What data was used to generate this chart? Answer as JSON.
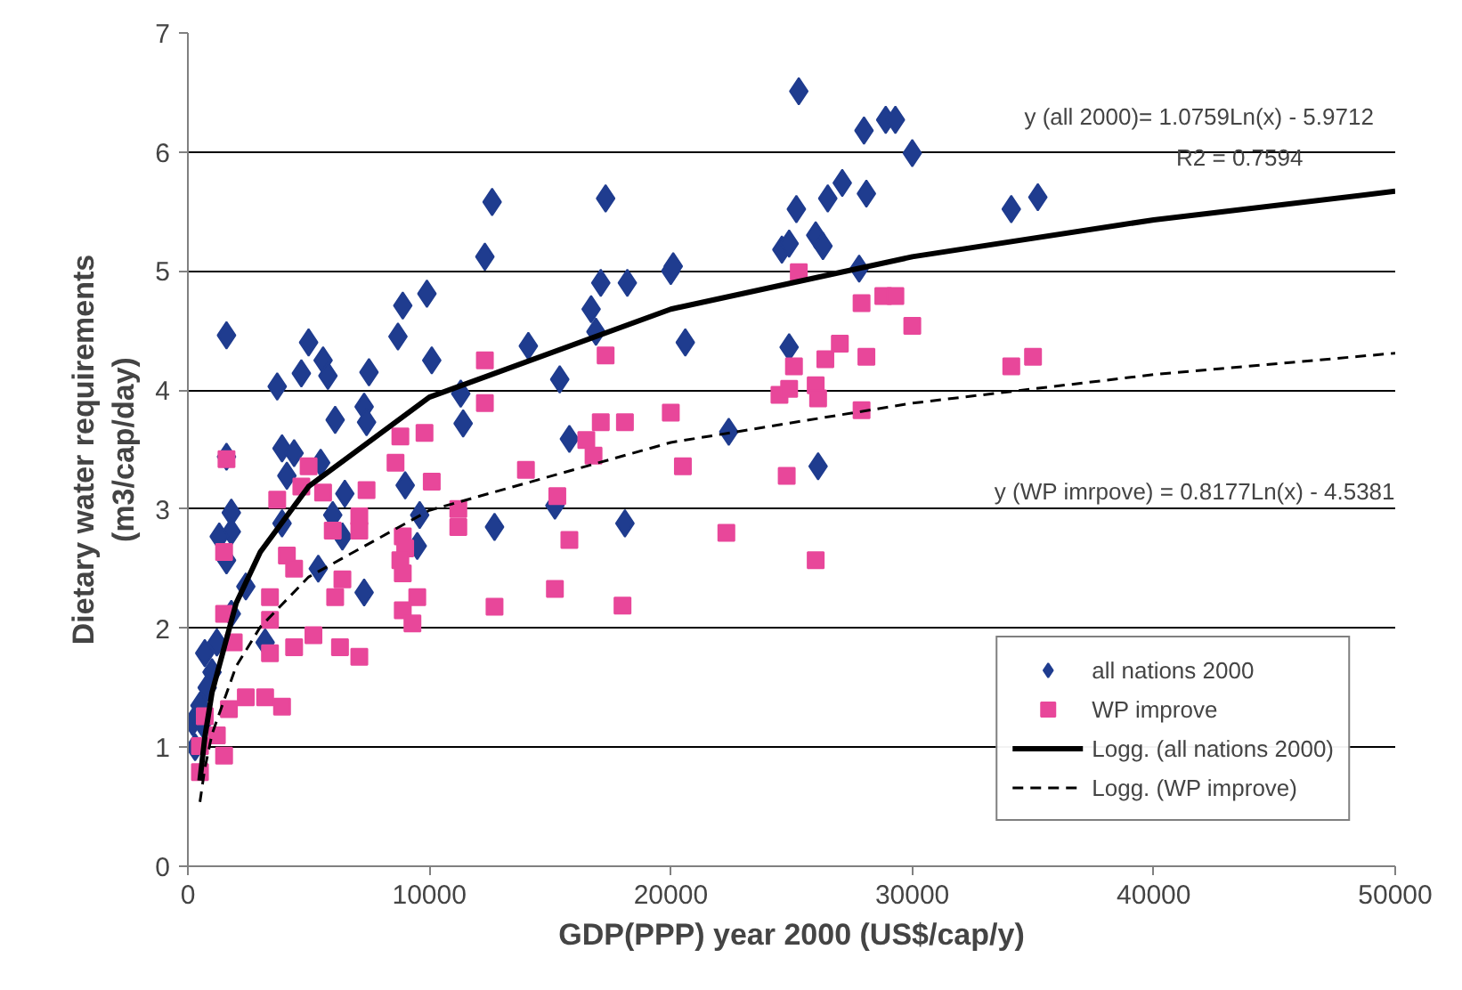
{
  "chart_data": {
    "type": "scatter",
    "xlabel": "GDP(PPP) year 2000 (US$/cap/y)",
    "ylabel": "Dietary water requirements\n(m3/cap/day)",
    "xlim": [
      0,
      50000
    ],
    "ylim": [
      0,
      7
    ],
    "xticks": [
      0,
      10000,
      20000,
      30000,
      40000,
      50000
    ],
    "yticks": [
      0,
      1,
      2,
      3,
      4,
      5,
      6,
      7
    ],
    "grid": "y",
    "legend": "bottom right",
    "annotations": [
      "y (all 2000)= 1.0759Ln(x) - 5.9712",
      "R2 = 0.7594",
      "y (WP imrpove) = 0.8177Ln(x) - 4.5381"
    ],
    "series": [
      {
        "name": "all nations 2000",
        "marker": "diamond",
        "color": "#1f3c8f",
        "x": [
          12600,
          12300,
          17300,
          17100,
          18200,
          16700,
          16900,
          14100,
          15400,
          20000,
          20100,
          20600,
          15800,
          15200,
          12700,
          18100,
          22400,
          30000,
          25200,
          24600,
          24900,
          26000,
          26300,
          26500,
          27100,
          28100,
          27800,
          24900,
          26100,
          25300,
          28000,
          28900,
          29300,
          34100,
          35200,
          1600,
          5000,
          4700,
          5600,
          5800,
          3700,
          8900,
          9900,
          8700,
          10100,
          7500,
          7300,
          6100,
          7400,
          11300,
          11400,
          3900,
          4400,
          4100,
          5500,
          6500,
          9000,
          1800,
          1800,
          1300,
          3900,
          6000,
          9600,
          9500,
          1600,
          2400,
          7300,
          700,
          1000,
          200,
          1600,
          1800,
          1200,
          3200,
          5400,
          6400,
          300,
          500,
          800,
          600
        ],
        "values": [
          5.58,
          5.12,
          5.61,
          4.9,
          4.9,
          4.68,
          4.49,
          4.37,
          4.09,
          5.0,
          5.04,
          4.4,
          3.59,
          3.03,
          2.85,
          2.88,
          3.65,
          5.99,
          5.52,
          5.18,
          5.23,
          5.3,
          5.21,
          5.61,
          5.74,
          5.65,
          5.02,
          4.36,
          3.36,
          6.51,
          6.18,
          6.27,
          6.27,
          5.52,
          5.62,
          4.46,
          4.4,
          4.14,
          4.25,
          4.12,
          4.03,
          4.71,
          4.81,
          4.45,
          4.25,
          4.15,
          3.86,
          3.75,
          3.73,
          3.97,
          3.72,
          3.51,
          3.47,
          3.28,
          3.39,
          3.13,
          3.2,
          2.97,
          2.81,
          2.77,
          2.88,
          2.95,
          2.95,
          2.69,
          2.57,
          2.35,
          2.3,
          1.79,
          1.63,
          1.21,
          3.44,
          2.12,
          1.88,
          1.88,
          2.5,
          2.77,
          1.0,
          1.35,
          1.5,
          1.2
        ]
      },
      {
        "name": "WP improve",
        "marker": "square",
        "color": "#e8479a",
        "x": [
          12300,
          12300,
          17300,
          14000,
          15300,
          16500,
          16800,
          17100,
          18100,
          20000,
          20500,
          15800,
          15200,
          12700,
          18000,
          22300,
          25300,
          24800,
          26000,
          24500,
          24900,
          25100,
          26000,
          26100,
          26400,
          27000,
          28100,
          27900,
          28800,
          29300,
          30000,
          27900,
          34100,
          35000,
          1600,
          1500,
          5000,
          3700,
          4700,
          5600,
          7400,
          8800,
          9800,
          8600,
          10100,
          7100,
          7100,
          6000,
          8900,
          9000,
          8800,
          8900,
          9500,
          8900,
          9300,
          11200,
          11200,
          6400,
          6100,
          6300,
          7100,
          5200,
          4400,
          3400,
          4100,
          4400,
          3400,
          3400,
          1500,
          1900,
          2400,
          3200,
          3900,
          1700,
          1200,
          1500,
          500,
          500,
          700
        ],
        "values": [
          4.25,
          3.89,
          4.29,
          3.33,
          3.11,
          3.58,
          3.45,
          3.73,
          3.73,
          3.81,
          3.36,
          2.74,
          2.33,
          2.18,
          2.19,
          2.8,
          4.99,
          3.28,
          2.57,
          3.96,
          4.01,
          4.2,
          4.04,
          3.93,
          4.26,
          4.39,
          4.28,
          4.73,
          4.79,
          4.79,
          4.54,
          3.83,
          4.2,
          4.28,
          3.42,
          2.64,
          3.36,
          3.08,
          3.19,
          3.14,
          3.16,
          3.61,
          3.64,
          3.39,
          3.23,
          2.94,
          2.82,
          2.82,
          2.77,
          2.67,
          2.57,
          2.46,
          2.26,
          2.15,
          2.04,
          3.0,
          2.85,
          2.41,
          2.26,
          1.84,
          1.76,
          1.94,
          1.84,
          1.79,
          2.61,
          2.5,
          2.26,
          2.07,
          2.12,
          1.88,
          1.42,
          1.42,
          1.34,
          1.32,
          1.1,
          0.93,
          0.79,
          1.01,
          1.26
        ]
      },
      {
        "name": "Logg. (all nations 2000)",
        "type": "line",
        "line_style": "solid",
        "color": "#000000",
        "x": [
          500,
          700,
          1000,
          2000,
          3000,
          5000,
          10000,
          20000,
          30000,
          40000,
          50000
        ],
        "values": [
          0.72,
          1.08,
          1.46,
          2.21,
          2.64,
          3.19,
          3.94,
          4.68,
          5.12,
          5.43,
          5.67
        ]
      },
      {
        "name": "Logg. (WP improve)",
        "type": "line",
        "line_style": "dashed",
        "color": "#000000",
        "x": [
          500,
          700,
          1000,
          2000,
          3000,
          5000,
          10000,
          20000,
          30000,
          40000,
          50000
        ],
        "values": [
          0.54,
          0.82,
          1.11,
          1.68,
          2.01,
          2.43,
          2.99,
          3.56,
          3.89,
          4.13,
          4.31
        ]
      }
    ]
  }
}
